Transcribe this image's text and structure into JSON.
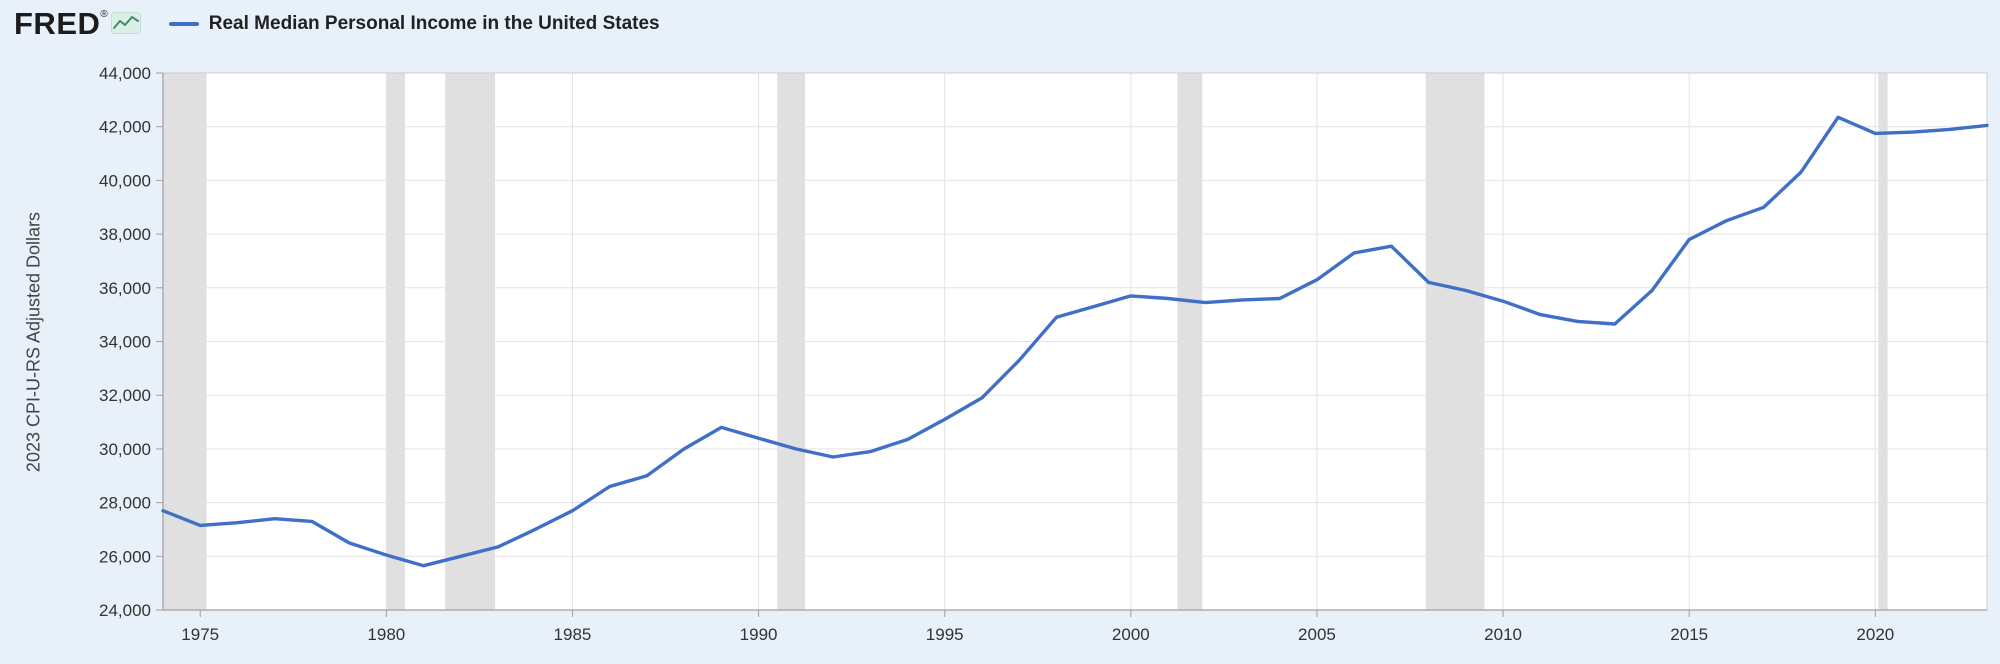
{
  "header": {
    "brand": "FRED",
    "registered_mark": "®",
    "legend_label": "Real Median Personal Income in the United States"
  },
  "icons": {
    "fred_logo_chart": "sparkline-area"
  },
  "colors": {
    "line": "#3f6fc7",
    "background": "#e8f1f9",
    "plot_background": "#ffffff",
    "recession_band": "#e0e0e0",
    "gridline": "#e3e3e3",
    "plot_border": "#cccccc",
    "axis": "#a0a0a0",
    "tick_text": "#333333"
  },
  "chart_data": {
    "type": "line",
    "title": "Real Median Personal Income in the United States",
    "xlabel": "",
    "ylabel": "2023 CPI-U-RS Adjusted Dollars",
    "x_range": [
      1974,
      2023
    ],
    "ylim": [
      24000,
      44000
    ],
    "grid": true,
    "legend_position": "top-left",
    "y_ticks": [
      24000,
      26000,
      28000,
      30000,
      32000,
      34000,
      36000,
      38000,
      40000,
      42000,
      44000
    ],
    "y_tick_labels": [
      "24,000",
      "26,000",
      "28,000",
      "30,000",
      "32,000",
      "34,000",
      "36,000",
      "38,000",
      "40,000",
      "42,000",
      "44,000"
    ],
    "x_ticks": [
      1975,
      1980,
      1985,
      1990,
      1995,
      2000,
      2005,
      2010,
      2015,
      2020
    ],
    "x_tick_labels": [
      "1975",
      "1980",
      "1985",
      "1990",
      "1995",
      "2000",
      "2005",
      "2010",
      "2015",
      "2020"
    ],
    "recession_bands": [
      [
        1974.0,
        1975.17
      ],
      [
        1980.0,
        1980.5
      ],
      [
        1981.58,
        1982.92
      ],
      [
        1990.5,
        1991.25
      ],
      [
        2001.25,
        2001.92
      ],
      [
        2007.92,
        2009.5
      ],
      [
        2020.08,
        2020.33
      ]
    ],
    "series": [
      {
        "name": "Real Median Personal Income in the United States",
        "x": [
          1974,
          1975,
          1976,
          1977,
          1978,
          1979,
          1980,
          1981,
          1982,
          1983,
          1984,
          1985,
          1986,
          1987,
          1988,
          1989,
          1990,
          1991,
          1992,
          1993,
          1994,
          1995,
          1996,
          1997,
          1998,
          1999,
          2000,
          2001,
          2002,
          2003,
          2004,
          2005,
          2006,
          2007,
          2008,
          2009,
          2010,
          2011,
          2012,
          2013,
          2014,
          2015,
          2016,
          2017,
          2018,
          2019,
          2020,
          2021,
          2022,
          2023
        ],
        "values": [
          27700,
          27150,
          27250,
          27400,
          27300,
          26500,
          26050,
          25650,
          26000,
          26350,
          27000,
          27700,
          28600,
          29000,
          30000,
          30800,
          30400,
          30000,
          29700,
          29900,
          30350,
          31100,
          31900,
          33300,
          34900,
          35300,
          35700,
          35600,
          35450,
          35550,
          35600,
          36300,
          37300,
          37550,
          36200,
          35900,
          35500,
          35000,
          34750,
          34650,
          35900,
          37800,
          38500,
          39000,
          40300,
          42350,
          41750,
          41800,
          41900,
          42050
        ]
      }
    ]
  }
}
